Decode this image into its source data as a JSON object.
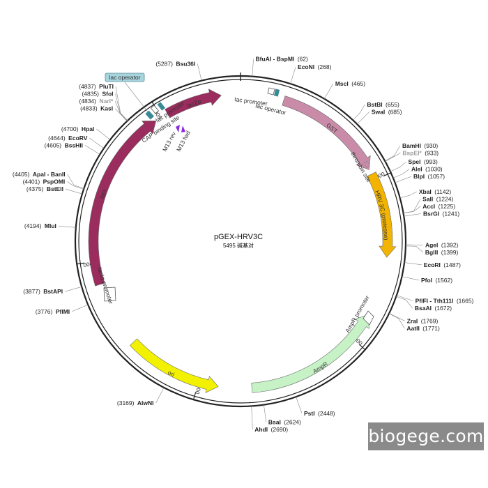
{
  "plasmid": {
    "name": "pGEX-HRV3C",
    "size_text": "5495 碱基对",
    "length": 5495
  },
  "ticks": [
    {
      "pos": 1000,
      "label": "1000"
    },
    {
      "pos": 2000,
      "label": "2000"
    },
    {
      "pos": 3000,
      "label": "3000"
    },
    {
      "pos": 4000,
      "label": "4000"
    },
    {
      "pos": 5000,
      "label": "5000"
    }
  ],
  "sites": [
    {
      "name": "BfuAI - BspMI",
      "pos": 62,
      "pos_text": "(62)",
      "gray": false
    },
    {
      "name": "EcoNI",
      "pos": 268,
      "pos_text": "(268)",
      "gray": false
    },
    {
      "name": "MscI",
      "pos": 465,
      "pos_text": "(465)",
      "gray": false
    },
    {
      "name": "BstBI",
      "pos": 655,
      "pos_text": "(655)",
      "gray": false
    },
    {
      "name": "SwaI",
      "pos": 685,
      "pos_text": "(685)",
      "gray": false
    },
    {
      "name": "BamHI",
      "pos": 930,
      "pos_text": "(930)",
      "gray": false
    },
    {
      "name": "BspEI*",
      "pos": 933,
      "pos_text": "(933)",
      "gray": true
    },
    {
      "name": "SpeI",
      "pos": 993,
      "pos_text": "(993)",
      "gray": false
    },
    {
      "name": "AleI",
      "pos": 1030,
      "pos_text": "(1030)",
      "gray": false
    },
    {
      "name": "BlpI",
      "pos": 1057,
      "pos_text": "(1057)",
      "gray": false
    },
    {
      "name": "XbaI",
      "pos": 1142,
      "pos_text": "(1142)",
      "gray": false
    },
    {
      "name": "SalI",
      "pos": 1224,
      "pos_text": "(1224)",
      "gray": false
    },
    {
      "name": "AccI",
      "pos": 1225,
      "pos_text": "(1225)",
      "gray": false
    },
    {
      "name": "BsrGI",
      "pos": 1241,
      "pos_text": "(1241)",
      "gray": false
    },
    {
      "name": "AgeI",
      "pos": 1392,
      "pos_text": "(1392)",
      "gray": false
    },
    {
      "name": "BglII",
      "pos": 1399,
      "pos_text": "(1399)",
      "gray": false
    },
    {
      "name": "EcoRI",
      "pos": 1487,
      "pos_text": "(1487)",
      "gray": false
    },
    {
      "name": "PfoI",
      "pos": 1562,
      "pos_text": "(1562)",
      "gray": false
    },
    {
      "name": "PflFI - Tth111I",
      "pos": 1665,
      "pos_text": "(1665)",
      "gray": false
    },
    {
      "name": "BsaAI",
      "pos": 1672,
      "pos_text": "(1672)",
      "gray": false
    },
    {
      "name": "ZraI",
      "pos": 1769,
      "pos_text": "(1769)",
      "gray": false
    },
    {
      "name": "AatII",
      "pos": 1771,
      "pos_text": "(1771)",
      "gray": false
    },
    {
      "name": "PstI",
      "pos": 2448,
      "pos_text": "(2448)",
      "gray": false
    },
    {
      "name": "BsaI",
      "pos": 2624,
      "pos_text": "(2624)",
      "gray": false
    },
    {
      "name": "AhdI",
      "pos": 2690,
      "pos_text": "(2690)",
      "gray": false
    },
    {
      "name": "AlwNI",
      "pos": 3169,
      "pos_text": "(3169)",
      "gray": false
    },
    {
      "name": "PflMI",
      "pos": 3776,
      "pos_text": "(3776)",
      "gray": false
    },
    {
      "name": "BstAPI",
      "pos": 3877,
      "pos_text": "(3877)",
      "gray": false
    },
    {
      "name": "MluI",
      "pos": 4194,
      "pos_text": "(4194)",
      "gray": false
    },
    {
      "name": "BstEII",
      "pos": 4375,
      "pos_text": "(4375)",
      "gray": false
    },
    {
      "name": "PspOMI",
      "pos": 4401,
      "pos_text": "(4401)",
      "gray": false
    },
    {
      "name": "ApaI - BanII",
      "pos": 4405,
      "pos_text": "(4405)",
      "gray": false
    },
    {
      "name": "BssHII",
      "pos": 4605,
      "pos_text": "(4605)",
      "gray": false
    },
    {
      "name": "EcoRV",
      "pos": 4644,
      "pos_text": "(4644)",
      "gray": false
    },
    {
      "name": "HpaI",
      "pos": 4700,
      "pos_text": "(4700)",
      "gray": false
    },
    {
      "name": "KasI",
      "pos": 4833,
      "pos_text": "(4833)",
      "gray": false
    },
    {
      "name": "NarI*",
      "pos": 4834,
      "pos_text": "(4834)",
      "gray": true
    },
    {
      "name": "SfoI",
      "pos": 4835,
      "pos_text": "(4835)",
      "gray": false
    },
    {
      "name": "PluTI",
      "pos": 4837,
      "pos_text": "(4837)",
      "gray": false
    },
    {
      "name": "Bsu36I",
      "pos": 5287,
      "pos_text": "(5287)",
      "gray": false
    }
  ],
  "features": [
    {
      "id": "lacZa",
      "label": "lacZα",
      "start": 5040,
      "end": 5380,
      "dir": 1,
      "color": "#9b2c5e"
    },
    {
      "id": "gst",
      "label": "GST",
      "start": 260,
      "end": 930,
      "dir": 1,
      "color": "#c98ba8"
    },
    {
      "id": "hrv3c",
      "label": "HRV 3C (protease)",
      "start": 960,
      "end": 1470,
      "dir": 1,
      "color": "#f2b400"
    },
    {
      "id": "ampr",
      "label": "AmpR",
      "start": 1830,
      "end": 2680,
      "dir": -1,
      "color": "#c6f2c6"
    },
    {
      "id": "ori",
      "label": "ori",
      "start": 2880,
      "end": 3460,
      "dir": -1,
      "color": "#f2f200"
    },
    {
      "id": "laci",
      "label": "lacI",
      "start": 3860,
      "end": 4960,
      "dir": 1,
      "color": "#9b2c5e"
    }
  ],
  "small_features": {
    "lac_operator_box": "lac operator",
    "lac_promoter_1": "lac promoter",
    "cap_binding_site": "CAP binding site",
    "m13_rev": "M13 rev",
    "m13_fwd": "M13 fwd",
    "tac_promoter": "tac promoter",
    "lac_operator_2": "lac operator",
    "thrombin_site": "thrombin site",
    "ampr_promoter": "AmpR promoter",
    "laciq_promoter": "lacIq promoter"
  },
  "watermark": "biogege.com"
}
